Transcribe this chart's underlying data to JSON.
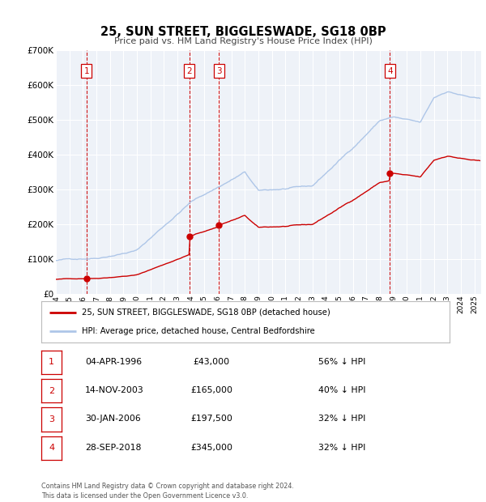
{
  "title": "25, SUN STREET, BIGGLESWADE, SG18 0BP",
  "subtitle": "Price paid vs. HM Land Registry's House Price Index (HPI)",
  "hpi_color": "#aec6e8",
  "price_color": "#cc0000",
  "background_color": "#eef2f8",
  "grid_color": "#ffffff",
  "ylim": [
    0,
    700000
  ],
  "yticks": [
    0,
    100000,
    200000,
    300000,
    400000,
    500000,
    600000,
    700000
  ],
  "ytick_labels": [
    "£0",
    "£100K",
    "£200K",
    "£300K",
    "£400K",
    "£500K",
    "£600K",
    "£700K"
  ],
  "xlim_start": 1994.0,
  "xlim_end": 2025.5,
  "transactions": [
    {
      "num": 1,
      "date": 1996.27,
      "price": 43000,
      "label": "04-APR-1996",
      "price_str": "£43,000",
      "pct": "56% ↓ HPI"
    },
    {
      "num": 2,
      "date": 2003.87,
      "price": 165000,
      "label": "14-NOV-2003",
      "price_str": "£165,000",
      "pct": "40% ↓ HPI"
    },
    {
      "num": 3,
      "date": 2006.08,
      "price": 197500,
      "label": "30-JAN-2006",
      "price_str": "£197,500",
      "pct": "32% ↓ HPI"
    },
    {
      "num": 4,
      "date": 2018.74,
      "price": 345000,
      "label": "28-SEP-2018",
      "price_str": "£345,000",
      "pct": "32% ↓ HPI"
    }
  ],
  "legend_label_price": "25, SUN STREET, BIGGLESWADE, SG18 0BP (detached house)",
  "legend_label_hpi": "HPI: Average price, detached house, Central Bedfordshire",
  "footer": "Contains HM Land Registry data © Crown copyright and database right 2024.\nThis data is licensed under the Open Government Licence v3.0.",
  "xticks": [
    1994,
    1995,
    1996,
    1997,
    1998,
    1999,
    2000,
    2001,
    2002,
    2003,
    2004,
    2005,
    2006,
    2007,
    2008,
    2009,
    2010,
    2011,
    2012,
    2013,
    2014,
    2015,
    2016,
    2017,
    2018,
    2019,
    2020,
    2021,
    2022,
    2023,
    2024,
    2025
  ]
}
